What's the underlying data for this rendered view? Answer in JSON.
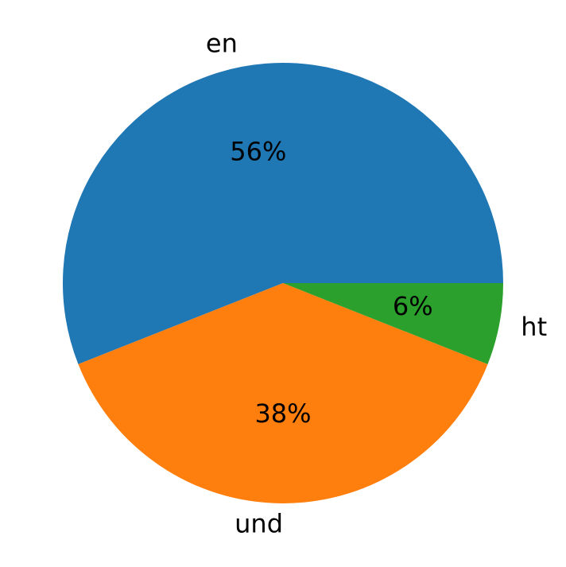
{
  "chart_data": {
    "type": "pie",
    "categories": [
      "en",
      "und",
      "ht"
    ],
    "values": [
      56,
      38,
      6
    ],
    "value_labels": [
      "56%",
      "38%",
      "6%"
    ],
    "colors": [
      "#1f77b4",
      "#ff7f0e",
      "#2ca02c"
    ]
  }
}
